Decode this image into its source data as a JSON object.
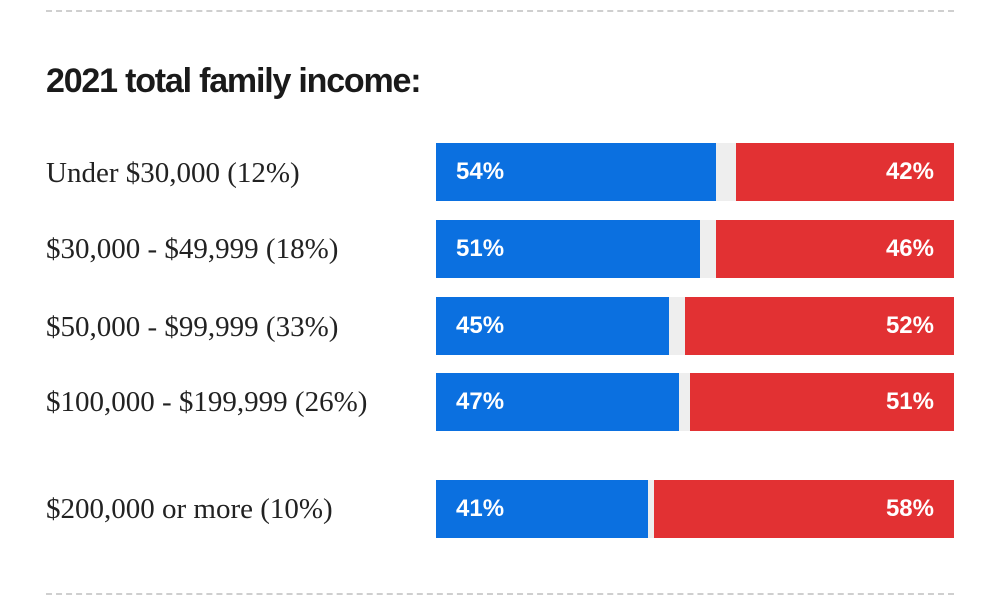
{
  "chart_data": {
    "type": "bar",
    "orientation": "horizontal-stacked",
    "title": "2021 total family income:",
    "categories": [
      "Under $30,000 (12%)",
      "$30,000 - $49,999 (18%)",
      "$50,000 - $99,999 (33%)",
      "$100,000 - $199,999 (26%)",
      "$200,000 or more (10%)"
    ],
    "series": [
      {
        "values": [
          54,
          51,
          45,
          47,
          41
        ],
        "labels": [
          "54%",
          "51%",
          "45%",
          "47%",
          "41%"
        ],
        "color": "#0b70e0"
      },
      {
        "values": [
          42,
          46,
          52,
          51,
          58
        ],
        "labels": [
          "42%",
          "46%",
          "52%",
          "51%",
          "58%"
        ],
        "color": "#e23133"
      }
    ],
    "remainder_color": "#eeeeee",
    "xlim": [
      0,
      100
    ],
    "grid": false,
    "legend": "none"
  }
}
